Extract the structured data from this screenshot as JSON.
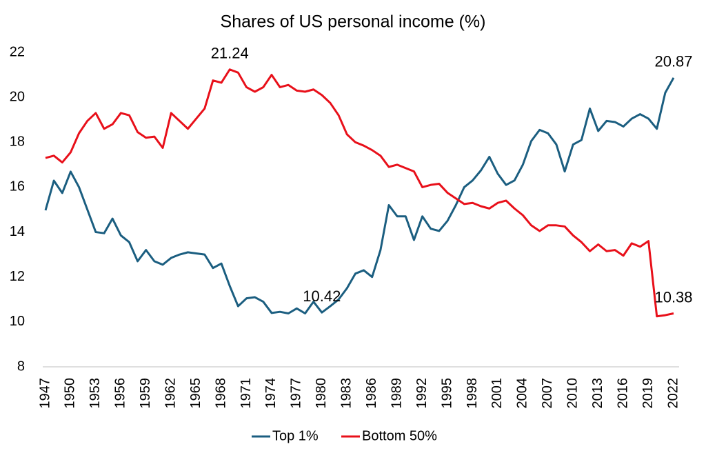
{
  "chart_data": {
    "type": "line",
    "title": "Shares of US personal income (%)",
    "x": [
      1947,
      1948,
      1949,
      1950,
      1951,
      1952,
      1953,
      1954,
      1955,
      1956,
      1957,
      1958,
      1959,
      1960,
      1961,
      1962,
      1963,
      1964,
      1965,
      1966,
      1967,
      1968,
      1969,
      1970,
      1971,
      1972,
      1973,
      1974,
      1975,
      1976,
      1977,
      1978,
      1979,
      1980,
      1981,
      1982,
      1983,
      1984,
      1985,
      1986,
      1987,
      1988,
      1989,
      1990,
      1991,
      1992,
      1993,
      1994,
      1995,
      1996,
      1997,
      1998,
      1999,
      2000,
      2001,
      2002,
      2003,
      2004,
      2005,
      2006,
      2007,
      2008,
      2009,
      2010,
      2011,
      2012,
      2013,
      2014,
      2015,
      2016,
      2017,
      2018,
      2019,
      2020,
      2021,
      2022
    ],
    "series": [
      {
        "name": "Top 1%",
        "color": "#1b5e80",
        "label_points": [
          33,
          75
        ],
        "values": [
          14.97,
          16.29,
          15.74,
          16.69,
          16.0,
          15.0,
          14.0,
          13.95,
          14.6,
          13.85,
          13.55,
          12.7,
          13.2,
          12.7,
          12.55,
          12.85,
          13.0,
          13.1,
          13.05,
          13.0,
          12.4,
          12.6,
          11.6,
          10.7,
          11.05,
          11.1,
          10.9,
          10.4,
          10.45,
          10.38,
          10.6,
          10.38,
          10.9,
          10.42,
          10.7,
          11.0,
          11.5,
          12.15,
          12.3,
          12.0,
          13.2,
          15.2,
          14.7,
          14.7,
          13.65,
          14.7,
          14.15,
          14.05,
          14.5,
          15.2,
          16.0,
          16.3,
          16.75,
          17.35,
          16.6,
          16.1,
          16.3,
          17.0,
          18.05,
          18.55,
          18.4,
          17.9,
          16.7,
          17.9,
          18.1,
          19.5,
          18.5,
          18.95,
          18.9,
          18.7,
          19.05,
          19.25,
          19.05,
          18.6,
          20.2,
          20.87
        ]
      },
      {
        "name": "Bottom 50%",
        "color": "#e8101a",
        "label_points": [
          22,
          75
        ],
        "values": [
          17.3,
          17.4,
          17.1,
          17.55,
          18.4,
          18.95,
          19.3,
          18.6,
          18.8,
          19.3,
          19.2,
          18.45,
          18.2,
          18.25,
          17.75,
          19.3,
          18.95,
          18.6,
          19.05,
          19.5,
          20.75,
          20.65,
          21.24,
          21.1,
          20.45,
          20.25,
          20.45,
          21.0,
          20.45,
          20.55,
          20.3,
          20.25,
          20.35,
          20.1,
          19.75,
          19.2,
          18.35,
          18.0,
          17.85,
          17.65,
          17.4,
          16.9,
          17.0,
          16.85,
          16.7,
          16.0,
          16.1,
          16.15,
          15.75,
          15.5,
          15.25,
          15.3,
          15.15,
          15.05,
          15.3,
          15.4,
          15.05,
          14.75,
          14.3,
          14.05,
          14.3,
          14.3,
          14.25,
          13.85,
          13.55,
          13.15,
          13.45,
          13.15,
          13.2,
          12.95,
          13.5,
          13.35,
          13.6,
          10.25,
          10.3,
          10.38
        ]
      }
    ],
    "xlim": [
      1947,
      2022
    ],
    "xticks": [
      1947,
      1950,
      1953,
      1956,
      1959,
      1962,
      1965,
      1968,
      1971,
      1974,
      1977,
      1980,
      1983,
      1986,
      1989,
      1992,
      1995,
      1998,
      2001,
      2004,
      2007,
      2010,
      2013,
      2016,
      2019,
      2022
    ],
    "ylim": [
      8,
      22
    ],
    "yticks": [
      8,
      10,
      12,
      14,
      16,
      18,
      20,
      22
    ],
    "grid": false,
    "legend": "bottom"
  }
}
